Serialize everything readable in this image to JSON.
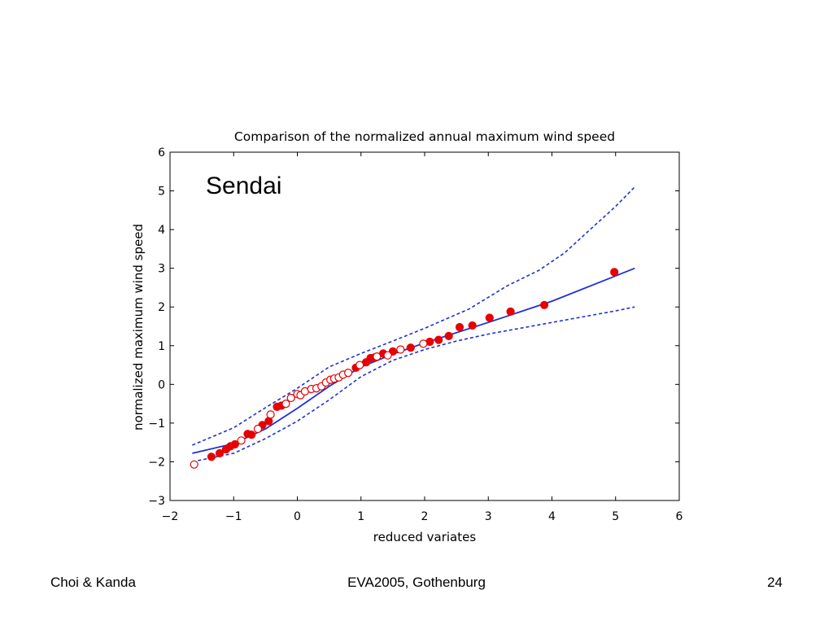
{
  "chart_data": {
    "type": "scatter",
    "title": "Comparison of the normalized annual maximum wind speed",
    "xlabel": "reduced variates",
    "ylabel": "normalized maximum wind speed",
    "xlim": [
      -2,
      6
    ],
    "ylim": [
      -3,
      6
    ],
    "xticks": [
      "−2",
      "−1",
      "0",
      "1",
      "2",
      "3",
      "4",
      "5",
      "6"
    ],
    "yticks": [
      "−3",
      "−2",
      "−1",
      "0",
      "1",
      "2",
      "3",
      "4",
      "5",
      "6"
    ],
    "annotation": "Sendai",
    "grid": false,
    "colors": {
      "series": "#e60000",
      "fit": "#1f2fd6"
    },
    "series": [
      {
        "marker": "filled-circle",
        "points": [
          [
            -1.35,
            -1.87
          ],
          [
            -1.22,
            -1.78
          ],
          [
            -1.12,
            -1.68
          ],
          [
            -1.05,
            -1.6
          ],
          [
            -0.98,
            -1.55
          ],
          [
            -0.78,
            -1.28
          ],
          [
            -0.72,
            -1.3
          ],
          [
            -0.55,
            -1.05
          ],
          [
            -0.45,
            -0.95
          ],
          [
            -0.32,
            -0.58
          ],
          [
            -0.25,
            -0.55
          ],
          [
            0.92,
            0.43
          ],
          [
            1.08,
            0.57
          ],
          [
            1.15,
            0.68
          ],
          [
            1.22,
            0.7
          ],
          [
            1.35,
            0.8
          ],
          [
            1.5,
            0.85
          ],
          [
            1.78,
            0.95
          ],
          [
            2.08,
            1.1
          ],
          [
            2.22,
            1.15
          ],
          [
            2.38,
            1.25
          ],
          [
            2.55,
            1.48
          ],
          [
            2.75,
            1.52
          ],
          [
            3.02,
            1.72
          ],
          [
            3.35,
            1.88
          ],
          [
            3.88,
            2.05
          ],
          [
            4.98,
            2.9
          ]
        ]
      },
      {
        "marker": "open-circle",
        "points": [
          [
            -1.62,
            -2.07
          ],
          [
            -0.88,
            -1.45
          ],
          [
            -0.62,
            -1.15
          ],
          [
            -0.42,
            -0.78
          ],
          [
            -0.18,
            -0.5
          ],
          [
            -0.1,
            -0.35
          ],
          [
            0.0,
            -0.25
          ],
          [
            0.05,
            -0.28
          ],
          [
            0.12,
            -0.18
          ],
          [
            0.22,
            -0.12
          ],
          [
            0.3,
            -0.1
          ],
          [
            0.38,
            -0.05
          ],
          [
            0.45,
            0.05
          ],
          [
            0.52,
            0.12
          ],
          [
            0.58,
            0.15
          ],
          [
            0.65,
            0.18
          ],
          [
            0.72,
            0.25
          ],
          [
            0.8,
            0.3
          ],
          [
            0.98,
            0.5
          ],
          [
            1.25,
            0.72
          ],
          [
            1.42,
            0.75
          ],
          [
            1.62,
            0.9
          ],
          [
            1.98,
            1.05
          ]
        ]
      }
    ],
    "fit_line": {
      "style": "solid",
      "x": [
        -1.65,
        -1.0,
        -0.5,
        0,
        0.5,
        1,
        1.5,
        2,
        3,
        4,
        5.3
      ],
      "y": [
        -1.78,
        -1.53,
        -1.15,
        -0.62,
        -0.05,
        0.45,
        0.78,
        1.07,
        1.6,
        2.15,
        3.0
      ]
    },
    "confidence_bands": [
      {
        "style": "dashed",
        "x": [
          -1.65,
          -1.0,
          -0.5,
          0,
          0.5,
          1,
          1.5,
          2,
          2.7,
          3.3,
          3.8,
          4.2,
          4.6,
          5.0,
          5.3
        ],
        "y": [
          -1.57,
          -1.12,
          -0.6,
          -0.1,
          0.45,
          0.8,
          1.12,
          1.45,
          1.95,
          2.55,
          2.95,
          3.4,
          4.0,
          4.6,
          5.1
        ]
      },
      {
        "style": "dashed",
        "x": [
          -1.65,
          -1.0,
          -0.5,
          0,
          0.5,
          1,
          1.5,
          2,
          2.5,
          3,
          3.5,
          4,
          4.5,
          5.0,
          5.3
        ],
        "y": [
          -2.0,
          -1.78,
          -1.4,
          -0.95,
          -0.4,
          0.2,
          0.62,
          0.9,
          1.12,
          1.3,
          1.45,
          1.6,
          1.75,
          1.9,
          2.0
        ]
      }
    ]
  },
  "footer": {
    "left": "Choi & Kanda",
    "center": "EVA2005, Gothenburg",
    "right": "24"
  }
}
